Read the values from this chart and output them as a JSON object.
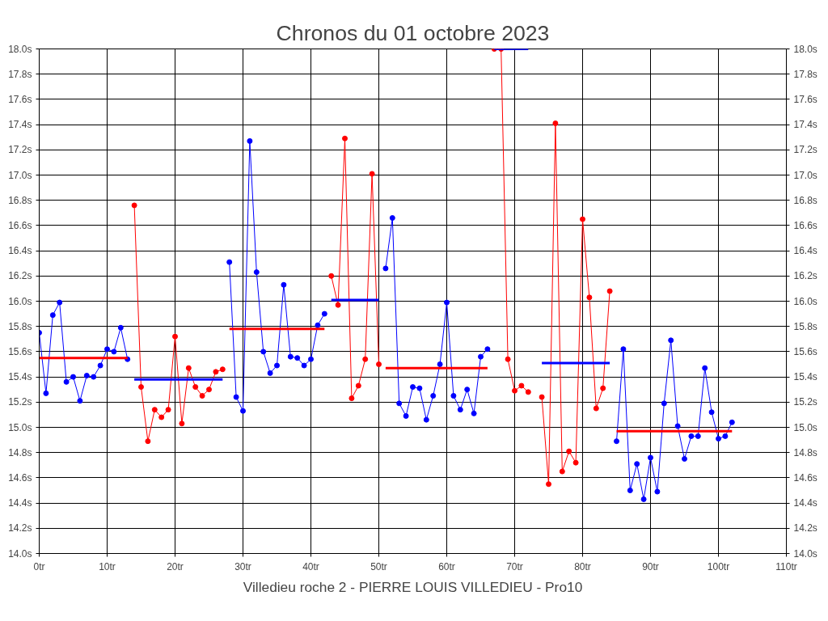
{
  "chart_data": {
    "type": "line",
    "title": "Chronos du 01 octobre 2023",
    "xlabel": "Villedieu roche 2 - PIERRE LOUIS VILLEDIEU - Pro10",
    "xlim": [
      0,
      110
    ],
    "xticks": [
      {
        "value": 0,
        "label": "0tr"
      },
      {
        "value": 10,
        "label": "10tr"
      },
      {
        "value": 20,
        "label": "20tr"
      },
      {
        "value": 30,
        "label": "30tr"
      },
      {
        "value": 40,
        "label": "40tr"
      },
      {
        "value": 50,
        "label": "50tr"
      },
      {
        "value": 60,
        "label": "60tr"
      },
      {
        "value": 70,
        "label": "70tr"
      },
      {
        "value": 80,
        "label": "80tr"
      },
      {
        "value": 90,
        "label": "90tr"
      },
      {
        "value": 100,
        "label": "100tr"
      },
      {
        "value": 110,
        "label": "110tr"
      }
    ],
    "ylim": [
      14.0,
      18.0
    ],
    "yticks": [
      {
        "value": 14.0,
        "label": "14.0s"
      },
      {
        "value": 14.2,
        "label": "14.2s"
      },
      {
        "value": 14.4,
        "label": "14.4s"
      },
      {
        "value": 14.6,
        "label": "14.6s"
      },
      {
        "value": 14.8,
        "label": "14.8s"
      },
      {
        "value": 15.0,
        "label": "15.0s"
      },
      {
        "value": 15.2,
        "label": "15.2s"
      },
      {
        "value": 15.4,
        "label": "15.4s"
      },
      {
        "value": 15.6,
        "label": "15.6s"
      },
      {
        "value": 15.8,
        "label": "15.8s"
      },
      {
        "value": 16.0,
        "label": "16.0s"
      },
      {
        "value": 16.2,
        "label": "16.2s"
      },
      {
        "value": 16.4,
        "label": "16.4s"
      },
      {
        "value": 16.6,
        "label": "16.6s"
      },
      {
        "value": 16.8,
        "label": "16.8s"
      },
      {
        "value": 17.0,
        "label": "17.0s"
      },
      {
        "value": 17.2,
        "label": "17.2s"
      },
      {
        "value": 17.4,
        "label": "17.4s"
      },
      {
        "value": 17.6,
        "label": "17.6s"
      },
      {
        "value": 17.8,
        "label": "17.8s"
      },
      {
        "value": 18.0,
        "label": "18.0s"
      }
    ],
    "y2lim": [
      14.0,
      18.0
    ],
    "y2ticks": [
      {
        "value": 14.0,
        "label": "14.0s"
      },
      {
        "value": 14.2,
        "label": "14.2s"
      },
      {
        "value": 14.4,
        "label": "14.4s"
      },
      {
        "value": 14.6,
        "label": "14.6s"
      },
      {
        "value": 14.8,
        "label": "14.8s"
      },
      {
        "value": 15.0,
        "label": "15.0s"
      },
      {
        "value": 15.2,
        "label": "15.2s"
      },
      {
        "value": 15.4,
        "label": "15.4s"
      },
      {
        "value": 15.6,
        "label": "15.6s"
      },
      {
        "value": 15.8,
        "label": "15.8s"
      },
      {
        "value": 16.0,
        "label": "16.0s"
      },
      {
        "value": 16.2,
        "label": "16.2s"
      },
      {
        "value": 16.4,
        "label": "16.4s"
      },
      {
        "value": 16.6,
        "label": "16.6s"
      },
      {
        "value": 16.8,
        "label": "16.8s"
      },
      {
        "value": 17.0,
        "label": "17.0s"
      },
      {
        "value": 17.2,
        "label": "17.2s"
      },
      {
        "value": 17.4,
        "label": "17.4s"
      },
      {
        "value": 17.6,
        "label": "17.6s"
      },
      {
        "value": 17.8,
        "label": "17.8s"
      },
      {
        "value": 18.0,
        "label": "18.0s"
      }
    ],
    "grid": true,
    "marker": "circle",
    "line_style": "solid",
    "series": [
      {
        "color": "#0000ff",
        "x": [
          0,
          1,
          2,
          3,
          4,
          5,
          6,
          7,
          8,
          9,
          10,
          11,
          12,
          13
        ],
        "values": [
          15.75,
          15.27,
          15.89,
          15.99,
          15.36,
          15.4,
          15.21,
          15.41,
          15.4,
          15.49,
          15.62,
          15.6,
          15.79,
          15.54
        ]
      },
      {
        "color": "#ff0000",
        "x": [
          14,
          15,
          16,
          17,
          18,
          19,
          20,
          21,
          22,
          23,
          24,
          25,
          26,
          27
        ],
        "values": [
          16.76,
          15.32,
          14.89,
          15.14,
          15.08,
          15.14,
          15.72,
          15.03,
          15.47,
          15.32,
          15.25,
          15.3,
          15.44,
          15.46
        ]
      },
      {
        "color": "#0000ff",
        "x": [
          28,
          29,
          30,
          31,
          32,
          33,
          34,
          35,
          36,
          37,
          38,
          39,
          40,
          41,
          42
        ],
        "values": [
          16.31,
          15.24,
          15.13,
          17.27,
          16.23,
          15.6,
          15.43,
          15.49,
          16.13,
          15.56,
          15.55,
          15.49,
          15.54,
          15.81,
          15.9
        ]
      },
      {
        "color": "#ff0000",
        "x": [
          43,
          44,
          45,
          46,
          47,
          48,
          49,
          50
        ],
        "values": [
          16.2,
          15.97,
          17.29,
          15.23,
          15.33,
          15.54,
          17.01,
          15.5
        ]
      },
      {
        "color": "#0000ff",
        "x": [
          51,
          52,
          53,
          54,
          55,
          56,
          57,
          58,
          59,
          60,
          61,
          62,
          63,
          64,
          65,
          66
        ],
        "values": [
          16.26,
          16.66,
          15.19,
          15.09,
          15.32,
          15.31,
          15.06,
          15.25,
          15.5,
          15.99,
          15.25,
          15.14,
          15.3,
          15.11,
          15.56,
          15.62
        ]
      },
      {
        "color": "#ff0000",
        "x": [
          67,
          68,
          69,
          70,
          71,
          72,
          73,
          74,
          75,
          76,
          77,
          78,
          79,
          80,
          81,
          82,
          83,
          84
        ],
        "values": [
          18.0,
          18.0,
          15.54,
          15.29,
          15.33,
          15.28,
          null,
          15.24,
          14.55,
          17.41,
          14.65,
          14.81,
          14.72,
          16.65,
          16.03,
          15.15,
          15.31,
          16.08
        ]
      },
      {
        "color": "#0000ff",
        "x": [
          85,
          86,
          87,
          88,
          89,
          90,
          91,
          92,
          93,
          94,
          95,
          96,
          97,
          98,
          99,
          100,
          101,
          102
        ],
        "values": [
          14.89,
          15.62,
          14.5,
          14.71,
          14.43,
          14.76,
          14.49,
          15.19,
          15.69,
          15.01,
          14.75,
          14.93,
          14.93,
          15.47,
          15.12,
          14.91,
          14.93,
          15.04
        ]
      },
      {
        "color": "#ff0000",
        "marker": "none",
        "x": [
          0,
          13
        ],
        "values": [
          15.55,
          15.55
        ]
      },
      {
        "color": "#0000ff",
        "marker": "none",
        "x": [
          14,
          27
        ],
        "values": [
          15.38,
          15.38
        ]
      },
      {
        "color": "#ff0000",
        "marker": "none",
        "x": [
          28,
          42
        ],
        "values": [
          15.78,
          15.78
        ]
      },
      {
        "color": "#0000ff",
        "marker": "none",
        "x": [
          43,
          50
        ],
        "values": [
          16.01,
          16.01
        ]
      },
      {
        "color": "#ff0000",
        "marker": "none",
        "x": [
          51,
          66
        ],
        "values": [
          15.47,
          15.47
        ]
      },
      {
        "color": "#0000ff",
        "marker": "none",
        "x": [
          67,
          72
        ],
        "values": [
          18.0,
          18.0
        ]
      },
      {
        "color": "#0000ff",
        "marker": "none",
        "x": [
          74,
          84
        ],
        "values": [
          15.51,
          15.51
        ]
      },
      {
        "color": "#ff0000",
        "marker": "none",
        "x": [
          85,
          102
        ],
        "values": [
          14.97,
          14.97
        ]
      }
    ]
  }
}
